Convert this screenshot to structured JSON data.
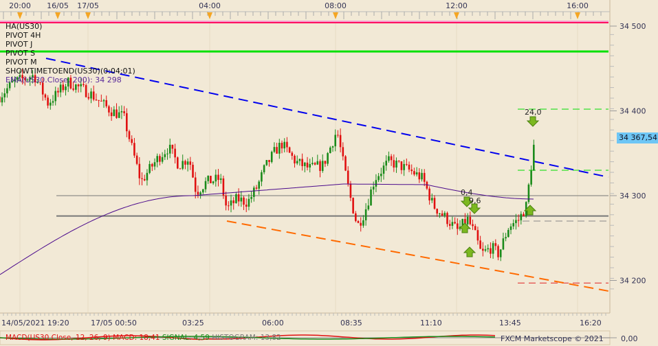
{
  "top_axis": {
    "labels": [
      "20:00",
      "16/05",
      "17/05",
      "04:00",
      "08:00",
      "12:00",
      "16:00"
    ]
  },
  "bottom_axis": {
    "labels": [
      "14/05/2021 19:20",
      "17/05 00:50",
      "03:25",
      "06:00",
      "08:35",
      "11:10",
      "13:45",
      "16:20"
    ]
  },
  "price_axis": {
    "labels": [
      "34 500",
      "34 400",
      "34 300",
      "34 200"
    ],
    "current_price": "34 367,54",
    "current_color": "#6ec6f5"
  },
  "legend": [
    "HA(US30)",
    "PIVOT 4H",
    "PIVOT J",
    "PIVOT S",
    "PIVOT M",
    "SHOWTIMETOEND(US30)(0:04:01)"
  ],
  "ema_label": "EMA(US30.Close, 200): 34 298",
  "signals": {
    "down_label_1": "24,0",
    "down_label_2": "0,4",
    "down_label_3": "9,6"
  },
  "macd": {
    "name": "MACD(US30.Close, 12, 26, 9)",
    "macd": "MACD: 18,41",
    "signal": "SIGNAL: 4,59",
    "histogram": "HISTOGRAM: 13,82",
    "zero_label": "0,00"
  },
  "watermark": "FXCM Marketscope © 2021",
  "colors": {
    "bull": "#1a8a1a",
    "bear": "#e01010",
    "ema": "#4b0a8c",
    "trend_upper": "#0000ee",
    "trend_lower": "#ff6a00",
    "pivot_green": "#00e000",
    "ha_line": "#ff1060"
  },
  "chart_data": {
    "type": "candlestick",
    "symbol": "US30",
    "timeframe_note": "",
    "close_path": [
      [
        "14/05",
        "19:20",
        34417
      ],
      [
        "14/05",
        "19:48",
        34434
      ],
      [
        "14/05",
        "20:28",
        34442
      ],
      [
        "14/05",
        "20:55",
        34409
      ],
      [
        "16/05",
        "23:20",
        34434
      ],
      [
        "17/05",
        "00:03",
        34421
      ],
      [
        "17/05",
        "00:43",
        34401
      ],
      [
        "17/05",
        "01:10",
        34393
      ],
      [
        "17/05",
        "01:24",
        34361
      ],
      [
        "17/05",
        "01:44",
        34316
      ],
      [
        "17/05",
        "01:57",
        34328
      ],
      [
        "17/05",
        "02:18",
        34345
      ],
      [
        "17/05",
        "02:38",
        34357
      ],
      [
        "17/05",
        "02:58",
        34336
      ],
      [
        "17/05",
        "03:18",
        34345
      ],
      [
        "17/05",
        "03:32",
        34304
      ],
      [
        "17/05",
        "03:52",
        34316
      ],
      [
        "17/05",
        "04:19",
        34320
      ],
      [
        "17/05",
        "04:32",
        34284
      ],
      [
        "17/05",
        "04:52",
        34296
      ],
      [
        "17/05",
        "05:13",
        34292
      ],
      [
        "17/05",
        "05:33",
        34312
      ],
      [
        "17/05",
        "05:46",
        34332
      ],
      [
        "17/05",
        "06:07",
        34353
      ],
      [
        "17/05",
        "06:20",
        34361
      ],
      [
        "17/05",
        "06:47",
        34340
      ],
      [
        "17/05",
        "07:14",
        34332
      ],
      [
        "17/05",
        "07:41",
        34336
      ],
      [
        "17/05",
        "08:08",
        34377
      ],
      [
        "17/05",
        "08:21",
        34336
      ],
      [
        "17/05",
        "08:35",
        34296
      ],
      [
        "17/05",
        "08:48",
        34264
      ],
      [
        "17/05",
        "09:02",
        34280
      ],
      [
        "17/05",
        "09:22",
        34320
      ],
      [
        "17/05",
        "09:49",
        34340
      ],
      [
        "17/05",
        "10:09",
        34336
      ],
      [
        "17/05",
        "10:36",
        34328
      ],
      [
        "17/05",
        "10:56",
        34320
      ],
      [
        "17/05",
        "11:17",
        34288
      ],
      [
        "17/05",
        "11:44",
        34272
      ],
      [
        "17/05",
        "12:04",
        34259
      ],
      [
        "17/05",
        "12:24",
        34272
      ],
      [
        "17/05",
        "12:38",
        34255
      ],
      [
        "17/05",
        "12:51",
        34231
      ],
      [
        "17/05",
        "13:11",
        34239
      ],
      [
        "17/05",
        "13:25",
        34231
      ],
      [
        "17/05",
        "13:45",
        34264
      ],
      [
        "17/05",
        "14:05",
        34272
      ],
      [
        "17/05",
        "14:19",
        34288
      ],
      [
        "17/05",
        "14:36",
        34369
      ]
    ],
    "ylim": [
      34180,
      34505
    ],
    "levels": {
      "ha": 34504,
      "pivot": 34470,
      "grey_1": 34300,
      "grey_2": 34276,
      "green_dash_1": 34402,
      "green_dash_2": 34330,
      "grey_dash": 34270,
      "red_dash": 34197
    }
  }
}
